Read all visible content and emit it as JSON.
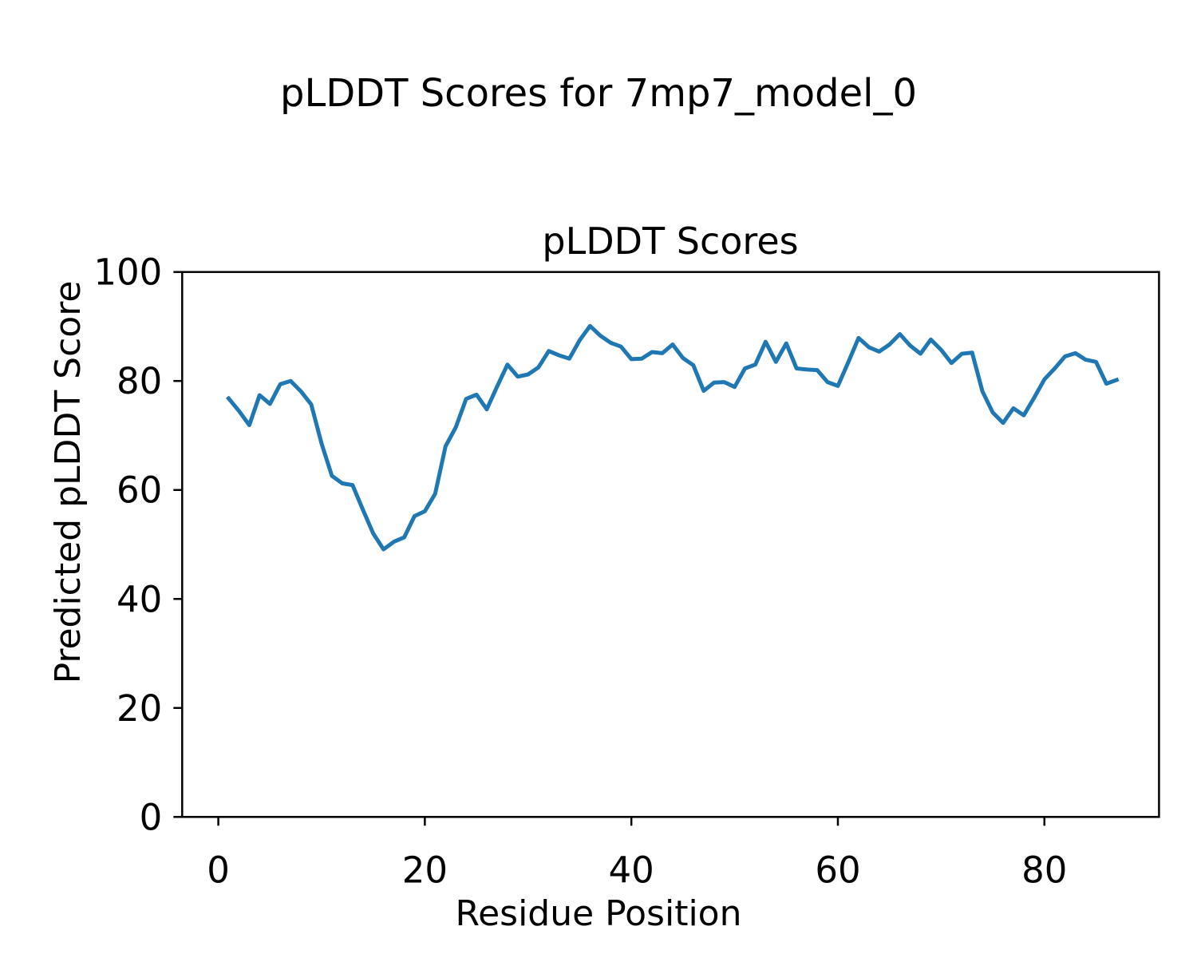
{
  "figure": {
    "suptitle": "pLDDT Scores for 7mp7_model_0"
  },
  "chart_data": {
    "type": "line",
    "title": "pLDDT Scores",
    "xlabel": "Residue Position",
    "ylabel": "Predicted pLDDT Score",
    "xlim": [
      -3.5,
      91.1
    ],
    "ylim": [
      0,
      100
    ],
    "xticks": [
      0,
      20,
      40,
      60,
      80
    ],
    "yticks": [
      0,
      20,
      40,
      60,
      80,
      100
    ],
    "grid": false,
    "legend": "none",
    "line_color": "#1f77b4",
    "axis_color": "#000000",
    "series_name": "pLDDT",
    "x": [
      1,
      2,
      3,
      4,
      5,
      6,
      7,
      8,
      9,
      10,
      11,
      12,
      13,
      14,
      15,
      16,
      17,
      18,
      19,
      20,
      21,
      22,
      23,
      24,
      25,
      26,
      27,
      28,
      29,
      30,
      31,
      32,
      33,
      34,
      35,
      36,
      37,
      38,
      39,
      40,
      41,
      42,
      43,
      44,
      45,
      46,
      47,
      48,
      49,
      50,
      51,
      52,
      53,
      54,
      55,
      56,
      57,
      58,
      59,
      60,
      61,
      62,
      63,
      64,
      65,
      66,
      67,
      68,
      69,
      70,
      71,
      72,
      73,
      74,
      75,
      76,
      77,
      78,
      79,
      80,
      81,
      82,
      83,
      84,
      85,
      86,
      87
    ],
    "y": [
      76.8,
      74.5,
      71.9,
      77.4,
      75.8,
      79.4,
      80.0,
      78.1,
      75.7,
      68.5,
      62.6,
      61.2,
      60.9,
      56.4,
      52.0,
      49.1,
      50.5,
      51.3,
      55.2,
      56.1,
      59.3,
      68.0,
      71.5,
      76.7,
      77.5,
      74.8,
      79.0,
      83.0,
      80.8,
      81.2,
      82.5,
      85.5,
      84.7,
      84.1,
      87.5,
      90.1,
      88.3,
      87.0,
      86.3,
      84.0,
      84.1,
      85.3,
      85.1,
      86.7,
      84.2,
      82.9,
      78.2,
      79.7,
      79.8,
      78.9,
      82.3,
      83.0,
      87.2,
      83.5,
      86.9,
      82.3,
      82.1,
      82.0,
      79.8,
      79.1,
      83.4,
      87.9,
      86.2,
      85.4,
      86.7,
      88.6,
      86.5,
      85.0,
      87.6,
      85.7,
      83.3,
      85.0,
      85.2,
      78.1,
      74.2,
      72.3,
      75.0,
      73.7,
      76.9,
      80.3,
      82.3,
      84.5,
      85.1,
      83.9,
      83.5,
      79.5,
      80.2
    ]
  }
}
